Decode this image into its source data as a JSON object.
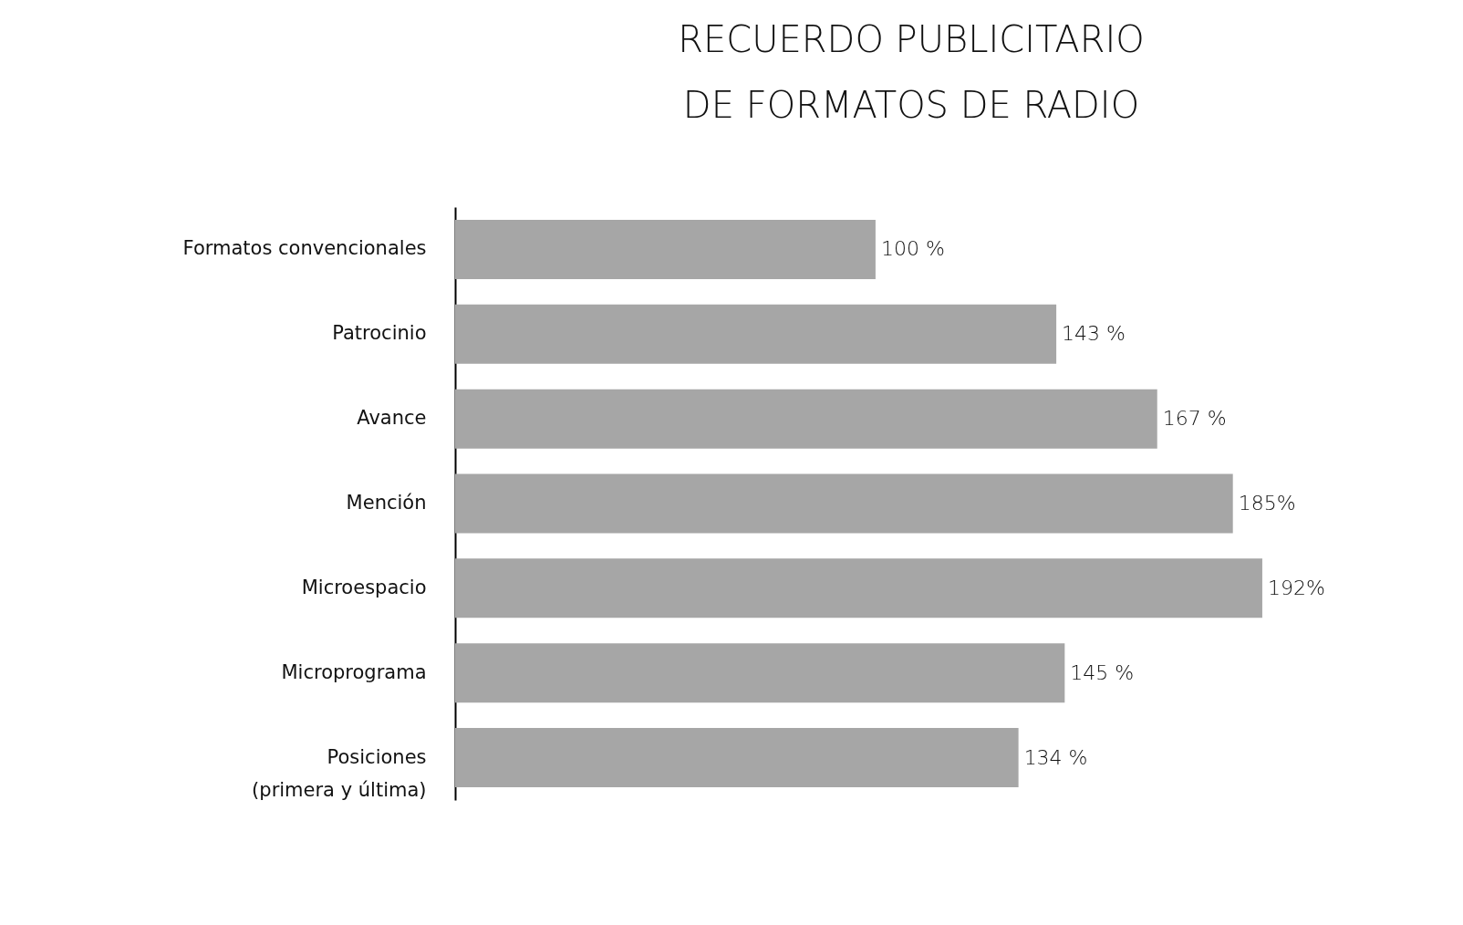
{
  "chart_data": {
    "type": "bar",
    "orientation": "horizontal",
    "title": "RECUERDO PUBLICITARIO\nDE FORMATOS DE RADIO",
    "categories": [
      "Formatos convencionales",
      "Patrocinio",
      "Avance",
      "Mención",
      "Microespacio",
      "Microprograma",
      "Posiciones\n(primera y última)"
    ],
    "values": [
      100,
      143,
      167,
      185,
      192,
      145,
      134
    ],
    "value_labels": [
      "100 %",
      "143 %",
      "167 %",
      "185%",
      "192%",
      "145 %",
      "134 %"
    ],
    "color": "#a6a6a6"
  }
}
